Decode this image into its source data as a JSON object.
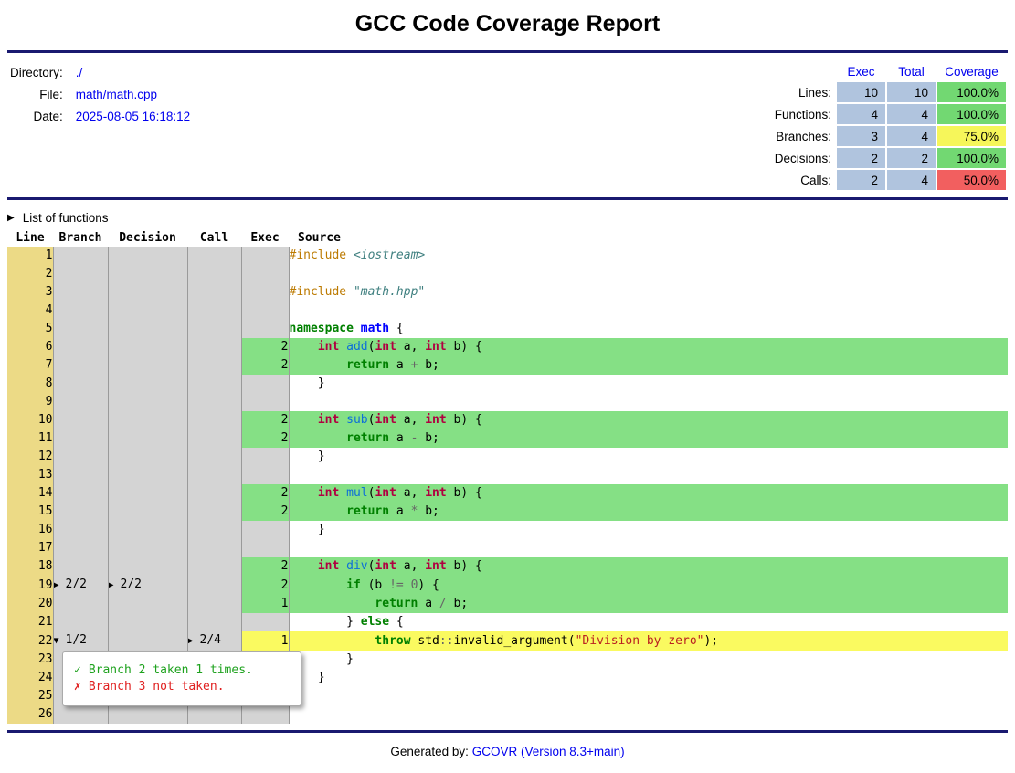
{
  "title": "GCC Code Coverage Report",
  "meta": {
    "directory_label": "Directory:",
    "directory": "./",
    "file_label": "File:",
    "file": "math/math.cpp",
    "date_label": "Date:",
    "date": "2025-08-05 16:18:12"
  },
  "summary": {
    "headers": [
      "Exec",
      "Total",
      "Coverage"
    ],
    "rows": [
      {
        "label": "Lines:",
        "exec": "10",
        "total": "10",
        "coverage": "100.0%",
        "level": "high"
      },
      {
        "label": "Functions:",
        "exec": "4",
        "total": "4",
        "coverage": "100.0%",
        "level": "high"
      },
      {
        "label": "Branches:",
        "exec": "3",
        "total": "4",
        "coverage": "75.0%",
        "level": "medium"
      },
      {
        "label": "Decisions:",
        "exec": "2",
        "total": "2",
        "coverage": "100.0%",
        "level": "high"
      },
      {
        "label": "Calls:",
        "exec": "2",
        "total": "4",
        "coverage": "50.0%",
        "level": "low"
      }
    ]
  },
  "functions_toggle": {
    "marker": "▶",
    "label": "List of functions"
  },
  "source_table": {
    "headers": [
      "Line",
      "Branch",
      "Decision",
      "Call",
      "Exec",
      "Source"
    ],
    "rows": [
      {
        "line": "1",
        "branch": null,
        "decision": null,
        "call": null,
        "exec": "",
        "status": "none",
        "src": [
          [
            "cp",
            "#include"
          ],
          [
            "pl",
            " "
          ],
          [
            "cpf",
            "<iostream>"
          ]
        ]
      },
      {
        "line": "2",
        "branch": null,
        "decision": null,
        "call": null,
        "exec": "",
        "status": "none",
        "src": []
      },
      {
        "line": "3",
        "branch": null,
        "decision": null,
        "call": null,
        "exec": "",
        "status": "none",
        "src": [
          [
            "cp",
            "#include"
          ],
          [
            "pl",
            " "
          ],
          [
            "cpf",
            "\"math.hpp\""
          ]
        ]
      },
      {
        "line": "4",
        "branch": null,
        "decision": null,
        "call": null,
        "exec": "",
        "status": "none",
        "src": []
      },
      {
        "line": "5",
        "branch": null,
        "decision": null,
        "call": null,
        "exec": "",
        "status": "none",
        "src": [
          [
            "k",
            "namespace"
          ],
          [
            "pl",
            " "
          ],
          [
            "nn",
            "math"
          ],
          [
            "pl",
            " {"
          ]
        ]
      },
      {
        "line": "6",
        "branch": null,
        "decision": null,
        "call": null,
        "exec": "2",
        "status": "cov",
        "src": [
          [
            "pl",
            "    "
          ],
          [
            "kt",
            "int"
          ],
          [
            "pl",
            " "
          ],
          [
            "nf",
            "add"
          ],
          [
            "pl",
            "("
          ],
          [
            "kt",
            "int"
          ],
          [
            "pl",
            " a, "
          ],
          [
            "kt",
            "int"
          ],
          [
            "pl",
            " b) {"
          ]
        ]
      },
      {
        "line": "7",
        "branch": null,
        "decision": null,
        "call": null,
        "exec": "2",
        "status": "cov",
        "src": [
          [
            "pl",
            "        "
          ],
          [
            "k",
            "return"
          ],
          [
            "pl",
            " a "
          ],
          [
            "o",
            "+"
          ],
          [
            "pl",
            " b;"
          ]
        ]
      },
      {
        "line": "8",
        "branch": null,
        "decision": null,
        "call": null,
        "exec": "",
        "status": "none",
        "src": [
          [
            "pl",
            "    }"
          ]
        ]
      },
      {
        "line": "9",
        "branch": null,
        "decision": null,
        "call": null,
        "exec": "",
        "status": "none",
        "src": []
      },
      {
        "line": "10",
        "branch": null,
        "decision": null,
        "call": null,
        "exec": "2",
        "status": "cov",
        "src": [
          [
            "pl",
            "    "
          ],
          [
            "kt",
            "int"
          ],
          [
            "pl",
            " "
          ],
          [
            "nf",
            "sub"
          ],
          [
            "pl",
            "("
          ],
          [
            "kt",
            "int"
          ],
          [
            "pl",
            " a, "
          ],
          [
            "kt",
            "int"
          ],
          [
            "pl",
            " b) {"
          ]
        ]
      },
      {
        "line": "11",
        "branch": null,
        "decision": null,
        "call": null,
        "exec": "2",
        "status": "cov",
        "src": [
          [
            "pl",
            "        "
          ],
          [
            "k",
            "return"
          ],
          [
            "pl",
            " a "
          ],
          [
            "o",
            "-"
          ],
          [
            "pl",
            " b;"
          ]
        ]
      },
      {
        "line": "12",
        "branch": null,
        "decision": null,
        "call": null,
        "exec": "",
        "status": "none",
        "src": [
          [
            "pl",
            "    }"
          ]
        ]
      },
      {
        "line": "13",
        "branch": null,
        "decision": null,
        "call": null,
        "exec": "",
        "status": "none",
        "src": []
      },
      {
        "line": "14",
        "branch": null,
        "decision": null,
        "call": null,
        "exec": "2",
        "status": "cov",
        "src": [
          [
            "pl",
            "    "
          ],
          [
            "kt",
            "int"
          ],
          [
            "pl",
            " "
          ],
          [
            "nf",
            "mul"
          ],
          [
            "pl",
            "("
          ],
          [
            "kt",
            "int"
          ],
          [
            "pl",
            " a, "
          ],
          [
            "kt",
            "int"
          ],
          [
            "pl",
            " b) {"
          ]
        ]
      },
      {
        "line": "15",
        "branch": null,
        "decision": null,
        "call": null,
        "exec": "2",
        "status": "cov",
        "src": [
          [
            "pl",
            "        "
          ],
          [
            "k",
            "return"
          ],
          [
            "pl",
            " a "
          ],
          [
            "o",
            "*"
          ],
          [
            "pl",
            " b;"
          ]
        ]
      },
      {
        "line": "16",
        "branch": null,
        "decision": null,
        "call": null,
        "exec": "",
        "status": "none",
        "src": [
          [
            "pl",
            "    }"
          ]
        ]
      },
      {
        "line": "17",
        "branch": null,
        "decision": null,
        "call": null,
        "exec": "",
        "status": "none",
        "src": []
      },
      {
        "line": "18",
        "branch": null,
        "decision": null,
        "call": null,
        "exec": "2",
        "status": "cov",
        "src": [
          [
            "pl",
            "    "
          ],
          [
            "kt",
            "int"
          ],
          [
            "pl",
            " "
          ],
          [
            "nf",
            "div"
          ],
          [
            "pl",
            "("
          ],
          [
            "kt",
            "int"
          ],
          [
            "pl",
            " a, "
          ],
          [
            "kt",
            "int"
          ],
          [
            "pl",
            " b) {"
          ]
        ]
      },
      {
        "line": "19",
        "branch": {
          "m": "▶",
          "v": "2/2"
        },
        "decision": {
          "m": "▶",
          "v": "2/2"
        },
        "call": null,
        "exec": "2",
        "status": "cov",
        "src": [
          [
            "pl",
            "        "
          ],
          [
            "k",
            "if"
          ],
          [
            "pl",
            " (b "
          ],
          [
            "o",
            "!="
          ],
          [
            "pl",
            " "
          ],
          [
            "mi",
            "0"
          ],
          [
            "pl",
            ") {"
          ]
        ]
      },
      {
        "line": "20",
        "branch": null,
        "decision": null,
        "call": null,
        "exec": "1",
        "status": "cov",
        "src": [
          [
            "pl",
            "            "
          ],
          [
            "k",
            "return"
          ],
          [
            "pl",
            " a "
          ],
          [
            "o",
            "/"
          ],
          [
            "pl",
            " b;"
          ]
        ]
      },
      {
        "line": "21",
        "branch": null,
        "decision": null,
        "call": null,
        "exec": "",
        "status": "none",
        "src": [
          [
            "pl",
            "        } "
          ],
          [
            "k",
            "else"
          ],
          [
            "pl",
            " {"
          ]
        ]
      },
      {
        "line": "22",
        "branch": {
          "m": "▼",
          "v": "1/2"
        },
        "decision": null,
        "call": {
          "m": "▶",
          "v": "2/4"
        },
        "exec": "1",
        "status": "par",
        "src": [
          [
            "pl",
            "            "
          ],
          [
            "k",
            "throw"
          ],
          [
            "pl",
            " std"
          ],
          [
            "o",
            "::"
          ],
          [
            "pl",
            "invalid_argument("
          ],
          [
            "s",
            "\"Division by zero\""
          ],
          [
            "pl",
            ");"
          ]
        ]
      },
      {
        "line": "23",
        "branch": null,
        "decision": null,
        "call": null,
        "exec": "",
        "status": "none",
        "src": [
          [
            "pl",
            "        }"
          ]
        ]
      },
      {
        "line": "24",
        "branch": null,
        "decision": null,
        "call": null,
        "exec": "",
        "status": "none",
        "src": [
          [
            "pl",
            "    }"
          ]
        ]
      },
      {
        "line": "25",
        "branch": null,
        "decision": null,
        "call": null,
        "exec": "",
        "status": "none",
        "src": [
          [
            "pl",
            "}"
          ]
        ]
      },
      {
        "line": "26",
        "branch": null,
        "decision": null,
        "call": null,
        "exec": "",
        "status": "none",
        "src": []
      }
    ]
  },
  "branch_popup": {
    "lines": [
      {
        "icon": "✓",
        "text": "Branch 2 taken 1 times.",
        "status": "taken"
      },
      {
        "icon": "✗",
        "text": "Branch 3 not taken.",
        "status": "not-taken"
      }
    ]
  },
  "footer": {
    "prefix": "Generated by:",
    "link": "GCOVR (Version 8.3+main)"
  },
  "colors": {
    "rule": "#191970",
    "link": "#0000ee",
    "number_cell": "#b0c4de",
    "coverage_high": "#72d872",
    "coverage_medium": "#f6f65a",
    "coverage_low": "#f25f5f",
    "line_covered": "#85e085",
    "line_partial": "#fafa60",
    "lineno_bg": "#ecda86",
    "column_bg": "#d4d4d4",
    "popup_taken": "#1ea21e",
    "popup_not_taken": "#e02020"
  }
}
